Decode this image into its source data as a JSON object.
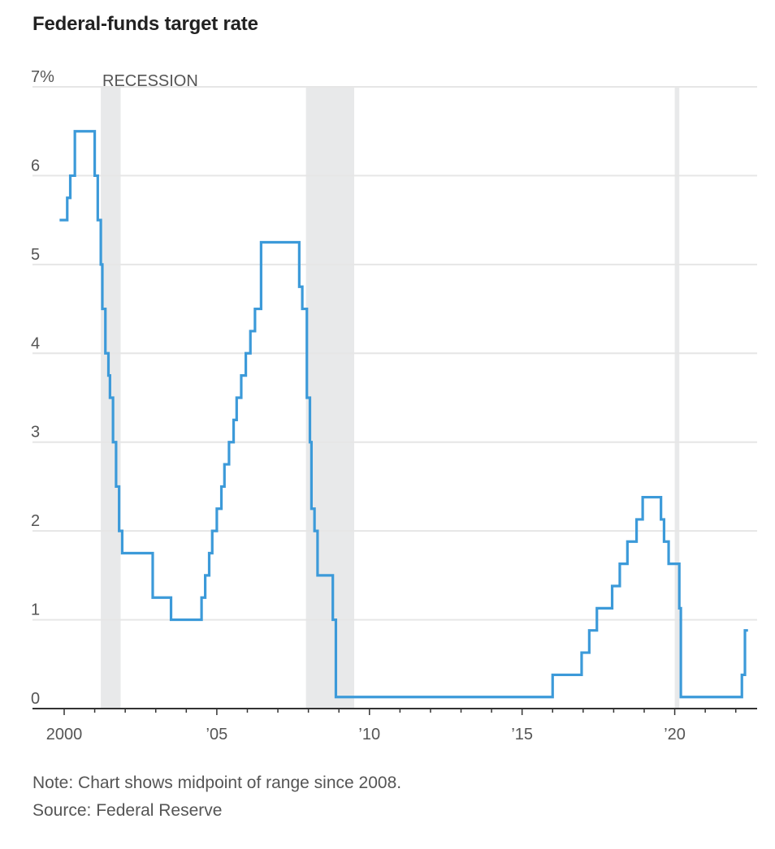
{
  "chart_data": {
    "type": "line",
    "step": true,
    "title": "Federal-funds target rate",
    "xlabel": "",
    "ylabel": "",
    "xlim": [
      1999.8,
      2022.4
    ],
    "ylim": [
      0,
      7
    ],
    "x_ticks": [
      {
        "value": 2000,
        "label": "2000"
      },
      {
        "value": 2005,
        "label": "’05"
      },
      {
        "value": 2010,
        "label": "’10"
      },
      {
        "value": 2015,
        "label": "’15"
      },
      {
        "value": 2020,
        "label": "’20"
      }
    ],
    "y_ticks": [
      {
        "value": 0,
        "label": "0"
      },
      {
        "value": 1,
        "label": "1"
      },
      {
        "value": 2,
        "label": "2"
      },
      {
        "value": 3,
        "label": "3"
      },
      {
        "value": 4,
        "label": "4"
      },
      {
        "value": 5,
        "label": "5"
      },
      {
        "value": 6,
        "label": "6"
      },
      {
        "value": 7,
        "label": "7%"
      }
    ],
    "grid": "horizontal",
    "recession_label": "RECESSION",
    "recessions": [
      [
        2001.2,
        2001.85
      ],
      [
        2007.92,
        2009.5
      ],
      [
        2020.0,
        2020.15
      ]
    ],
    "colors": {
      "line": "#3c9ad9",
      "recession": "#e8e9ea",
      "grid": "#e6e6e6",
      "axis": "#333333"
    },
    "series": [
      {
        "x": [
          1999.85,
          2000.1,
          2000.2,
          2000.35,
          2001.0,
          2001.1,
          2001.2,
          2001.25,
          2001.35,
          2001.45,
          2001.5,
          2001.6,
          2001.7,
          2001.8,
          2001.9,
          2002.9,
          2003.5,
          2004.5,
          2004.62,
          2004.75,
          2004.85,
          2005.0,
          2005.15,
          2005.25,
          2005.4,
          2005.55,
          2005.65,
          2005.8,
          2005.95,
          2006.1,
          2006.25,
          2006.45,
          2007.7,
          2007.8,
          2007.95,
          2008.05,
          2008.1,
          2008.2,
          2008.3,
          2008.8,
          2008.9,
          2008.95,
          2016.0,
          2016.95,
          2017.2,
          2017.45,
          2017.95,
          2018.2,
          2018.45,
          2018.75,
          2018.95,
          2019.55,
          2019.65,
          2019.8,
          2020.15,
          2020.2,
          2022.2,
          2022.3,
          2022.4
        ],
        "values": [
          5.5,
          5.75,
          6.0,
          6.5,
          6.0,
          5.5,
          5.0,
          4.5,
          4.0,
          3.75,
          3.5,
          3.0,
          2.5,
          2.0,
          1.75,
          1.25,
          1.0,
          1.25,
          1.5,
          1.75,
          2.0,
          2.25,
          2.5,
          2.75,
          3.0,
          3.25,
          3.5,
          3.75,
          4.0,
          4.25,
          4.5,
          5.25,
          4.75,
          4.5,
          3.5,
          3.0,
          2.25,
          2.0,
          1.5,
          1.0,
          0.13,
          0.13,
          0.38,
          0.63,
          0.88,
          1.13,
          1.38,
          1.63,
          1.88,
          2.13,
          2.38,
          2.13,
          1.88,
          1.63,
          1.13,
          0.13,
          0.38,
          0.88,
          0.88
        ]
      }
    ]
  },
  "note": {
    "line1": "Note: Chart shows midpoint of range since 2008.",
    "line2": "Source: Federal Reserve"
  }
}
